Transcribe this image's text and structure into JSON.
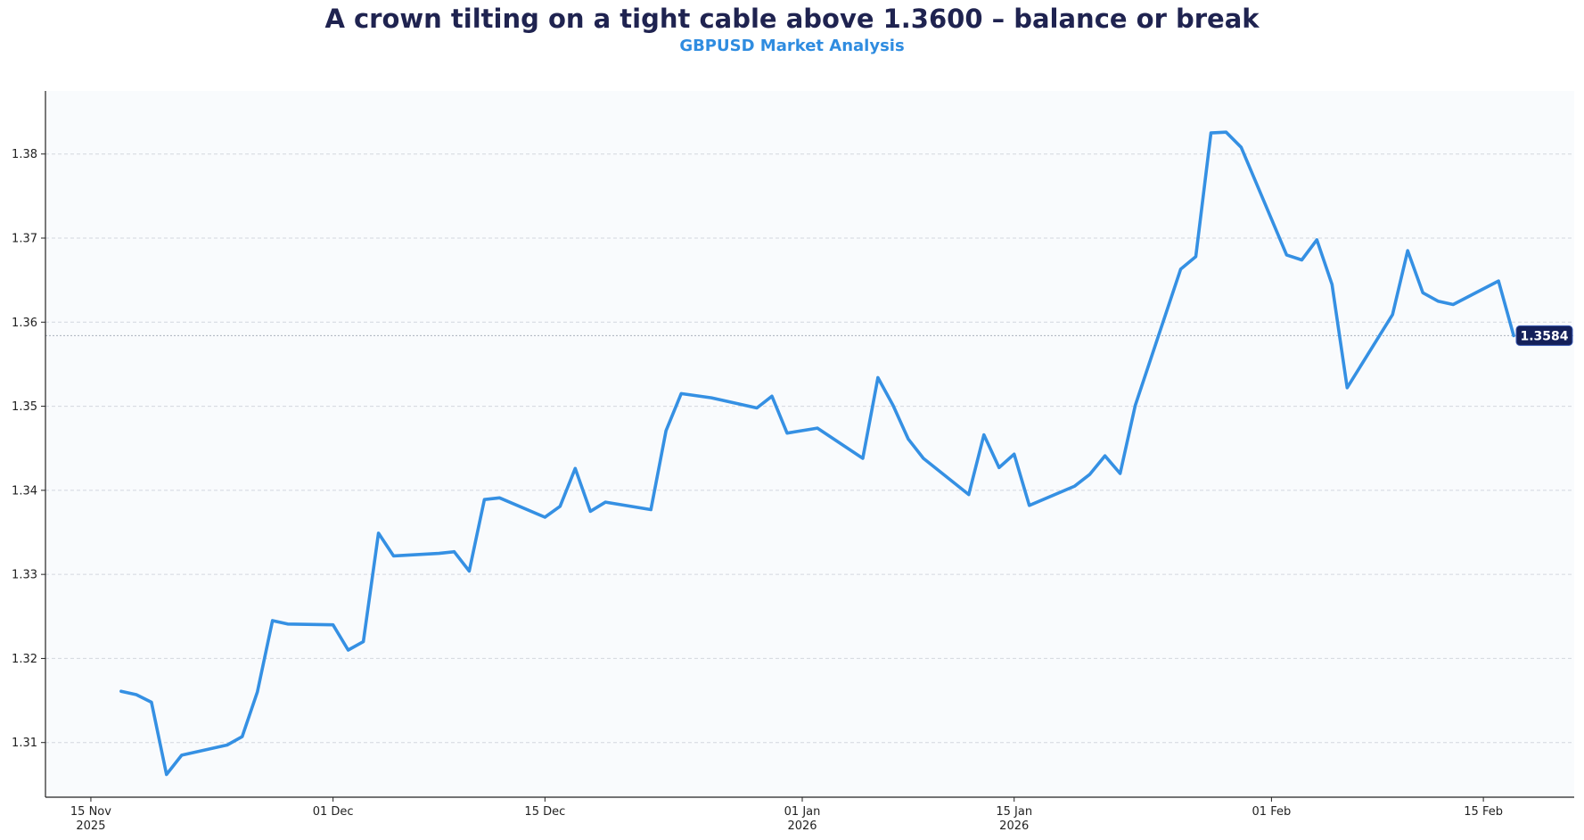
{
  "chart_data": {
    "type": "line",
    "title": "A crown tilting on a tight cable above 1.3600 – balance or break",
    "subtitle": "GBPUSD Market Analysis",
    "xlabel": "",
    "ylabel": "",
    "ylim": [
      1.3035,
      1.3875
    ],
    "xlim": [
      "2025-11-12",
      "2026-02-21"
    ],
    "grid": "horizontal-dashed",
    "colors": {
      "line": "#3590e3",
      "title": "#1f2350",
      "subtitle": "#2f8ce0",
      "badge": "#14205a",
      "grid": "#d3d7de",
      "background": "#f9fbfd"
    },
    "y_ticks": [
      "1.31",
      "1.32",
      "1.33",
      "1.34",
      "1.35",
      "1.36",
      "1.37",
      "1.38"
    ],
    "x_ticks": [
      {
        "date": "2025-11-15",
        "label": "15 Nov",
        "label2": "2025"
      },
      {
        "date": "2025-12-01",
        "label": "01 Dec",
        "label2": ""
      },
      {
        "date": "2025-12-15",
        "label": "15 Dec",
        "label2": ""
      },
      {
        "date": "2026-01-01",
        "label": "01 Jan",
        "label2": "2026"
      },
      {
        "date": "2026-01-15",
        "label": "15 Jan",
        "label2": "2026"
      },
      {
        "date": "2026-02-01",
        "label": "01 Feb",
        "label2": ""
      },
      {
        "date": "2026-02-15",
        "label": "15 Feb",
        "label2": ""
      }
    ],
    "last_value_label": "1.3584",
    "last_value": 1.3584,
    "series": [
      {
        "name": "GBPUSD",
        "points": [
          [
            "2025-11-17",
            1.3161
          ],
          [
            "2025-11-18",
            1.3157
          ],
          [
            "2025-11-19",
            1.3148
          ],
          [
            "2025-11-20",
            1.3062
          ],
          [
            "2025-11-21",
            1.3085
          ],
          [
            "2025-11-24",
            1.3097
          ],
          [
            "2025-11-25",
            1.3107
          ],
          [
            "2025-11-26",
            1.316
          ],
          [
            "2025-11-27",
            1.3245
          ],
          [
            "2025-11-28",
            1.3241
          ],
          [
            "2025-12-01",
            1.324
          ],
          [
            "2025-12-02",
            1.321
          ],
          [
            "2025-12-03",
            1.322
          ],
          [
            "2025-12-04",
            1.3349
          ],
          [
            "2025-12-05",
            1.3322
          ],
          [
            "2025-12-08",
            1.3325
          ],
          [
            "2025-12-09",
            1.3327
          ],
          [
            "2025-12-10",
            1.3304
          ],
          [
            "2025-12-11",
            1.3389
          ],
          [
            "2025-12-12",
            1.3391
          ],
          [
            "2025-12-15",
            1.3368
          ],
          [
            "2025-12-16",
            1.3381
          ],
          [
            "2025-12-17",
            1.3426
          ],
          [
            "2025-12-18",
            1.3375
          ],
          [
            "2025-12-19",
            1.3386
          ],
          [
            "2025-12-22",
            1.3377
          ],
          [
            "2025-12-23",
            1.3471
          ],
          [
            "2025-12-24",
            1.3515
          ],
          [
            "2025-12-26",
            1.351
          ],
          [
            "2025-12-29",
            1.3498
          ],
          [
            "2025-12-30",
            1.3512
          ],
          [
            "2025-12-31",
            1.3468
          ],
          [
            "2026-01-02",
            1.3474
          ],
          [
            "2026-01-05",
            1.3438
          ],
          [
            "2026-01-06",
            1.3534
          ],
          [
            "2026-01-07",
            1.3501
          ],
          [
            "2026-01-08",
            1.3461
          ],
          [
            "2026-01-09",
            1.3438
          ],
          [
            "2026-01-12",
            1.3395
          ],
          [
            "2026-01-13",
            1.3466
          ],
          [
            "2026-01-14",
            1.3427
          ],
          [
            "2026-01-15",
            1.3443
          ],
          [
            "2026-01-16",
            1.3382
          ],
          [
            "2026-01-19",
            1.3405
          ],
          [
            "2026-01-20",
            1.3419
          ],
          [
            "2026-01-21",
            1.3441
          ],
          [
            "2026-01-22",
            1.342
          ],
          [
            "2026-01-23",
            1.3501
          ],
          [
            "2026-01-26",
            1.3663
          ],
          [
            "2026-01-27",
            1.3678
          ],
          [
            "2026-01-28",
            1.3825
          ],
          [
            "2026-01-29",
            1.3826
          ],
          [
            "2026-01-30",
            1.3808
          ],
          [
            "2026-02-02",
            1.368
          ],
          [
            "2026-02-03",
            1.3674
          ],
          [
            "2026-02-04",
            1.3698
          ],
          [
            "2026-02-05",
            1.3645
          ],
          [
            "2026-02-06",
            1.3522
          ],
          [
            "2026-02-09",
            1.3609
          ],
          [
            "2026-02-10",
            1.3685
          ],
          [
            "2026-02-11",
            1.3635
          ],
          [
            "2026-02-12",
            1.3625
          ],
          [
            "2026-02-13",
            1.3621
          ],
          [
            "2026-02-16",
            1.3649
          ],
          [
            "2026-02-17",
            1.3584
          ]
        ]
      }
    ]
  }
}
